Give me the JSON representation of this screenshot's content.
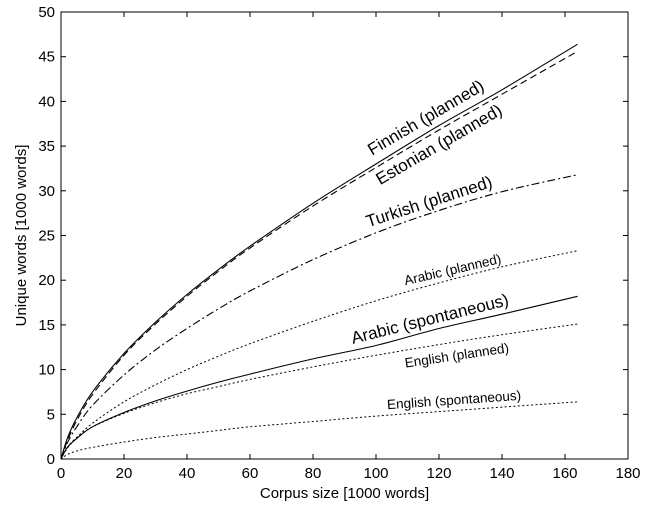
{
  "chart_data": {
    "type": "line",
    "xlabel": "Corpus size [1000 words]",
    "ylabel": "Unique words [1000 words]",
    "xlim": [
      0,
      180
    ],
    "ylim": [
      0,
      50
    ],
    "xticks": [
      0,
      20,
      40,
      60,
      80,
      100,
      120,
      140,
      160,
      180
    ],
    "yticks": [
      0,
      5,
      10,
      15,
      20,
      25,
      30,
      35,
      40,
      45,
      50
    ],
    "grid": false,
    "legend": "none",
    "series": [
      {
        "name": "Finnish (planned)",
        "line_style": "solid",
        "label_style": "large",
        "x": [
          0,
          2,
          5,
          10,
          20,
          30,
          40,
          50,
          60,
          80,
          100,
          120,
          140,
          164
        ],
        "y": [
          0,
          2.3,
          4.6,
          7.5,
          11.8,
          15.3,
          18.4,
          21.2,
          23.8,
          28.6,
          33.0,
          37.3,
          41.3,
          46.4
        ]
      },
      {
        "name": "Estonian (planned)",
        "line_style": "dashed",
        "label_style": "large",
        "x": [
          0,
          2,
          5,
          10,
          20,
          30,
          40,
          50,
          60,
          80,
          100,
          120,
          140,
          164
        ],
        "y": [
          0,
          2.0,
          4.3,
          7.2,
          11.6,
          15.1,
          18.2,
          21.0,
          23.6,
          28.3,
          32.6,
          36.8,
          40.8,
          45.6
        ]
      },
      {
        "name": "Turkish (planned)",
        "line_style": "dashdot",
        "label_style": "large",
        "x": [
          0,
          2,
          5,
          10,
          20,
          30,
          40,
          50,
          60,
          80,
          100,
          120,
          140,
          164
        ],
        "y": [
          0,
          1.8,
          3.6,
          6.0,
          9.4,
          12.2,
          14.6,
          16.8,
          18.8,
          22.3,
          25.3,
          27.8,
          29.9,
          31.8
        ]
      },
      {
        "name": "Arabic (planned)",
        "line_style": "dotted",
        "label_style": "small",
        "x": [
          0,
          2,
          5,
          10,
          20,
          30,
          40,
          50,
          60,
          80,
          100,
          120,
          140,
          164
        ],
        "y": [
          0,
          1.2,
          2.4,
          4.0,
          6.4,
          8.3,
          10.0,
          11.5,
          12.9,
          15.4,
          17.7,
          19.7,
          21.5,
          23.3
        ]
      },
      {
        "name": "Arabic (spontaneous)",
        "line_style": "solid",
        "label_style": "large",
        "x": [
          0,
          2,
          5,
          10,
          20,
          30,
          40,
          50,
          60,
          80,
          100,
          120,
          140,
          164
        ],
        "y": [
          0,
          1.3,
          2.3,
          3.6,
          5.2,
          6.5,
          7.6,
          8.6,
          9.5,
          11.2,
          12.7,
          14.6,
          16.2,
          18.2
        ]
      },
      {
        "name": "English (planned)",
        "line_style": "dotted",
        "label_style": "small",
        "x": [
          0,
          2,
          5,
          10,
          20,
          30,
          40,
          50,
          60,
          80,
          100,
          120,
          140,
          164
        ],
        "y": [
          0,
          1.3,
          2.4,
          3.6,
          5.1,
          6.3,
          7.3,
          8.1,
          8.9,
          10.3,
          11.6,
          12.8,
          13.9,
          15.1
        ]
      },
      {
        "name": "English (spontaneous)",
        "line_style": "dotted",
        "label_style": "small",
        "x": [
          0,
          2,
          5,
          10,
          20,
          30,
          40,
          50,
          60,
          80,
          100,
          120,
          140,
          164
        ],
        "y": [
          0,
          0.5,
          0.9,
          1.3,
          1.9,
          2.4,
          2.8,
          3.2,
          3.6,
          4.2,
          4.8,
          5.3,
          5.8,
          6.4
        ]
      }
    ]
  }
}
